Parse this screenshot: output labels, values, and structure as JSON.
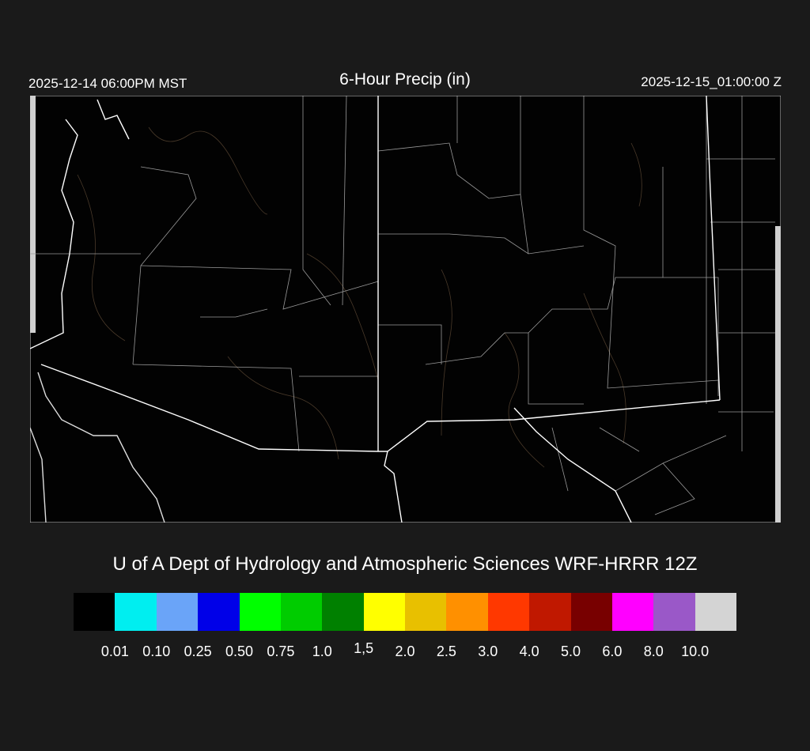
{
  "header": {
    "local_time": "2025-12-14 06:00PM MST",
    "title": "6-Hour Precip (in)",
    "valid_time": "2025-12-15_01:00:00 Z"
  },
  "map": {
    "region": "Arizona / New Mexico",
    "field": "6-hour precipitation",
    "background_color": "#020202",
    "border_color": "#ffffff",
    "terrain_contour_color": "#4a3a2a"
  },
  "credit": "U of A Dept of Hydrology and Atmospheric Sciences WRF-HRRR 12Z",
  "colorbar": {
    "colors": [
      "#000000",
      "#00eef0",
      "#6aa4f8",
      "#0000e8",
      "#00ff00",
      "#00cc00",
      "#008000",
      "#ffff00",
      "#e8c000",
      "#ff9000",
      "#ff3800",
      "#c01800",
      "#780000",
      "#ff00ff",
      "#9a58c8",
      "#d4d4d4"
    ],
    "labels": [
      "0.01",
      "0.10",
      "0.25",
      "0.50",
      "0.75",
      "1.0",
      "1,5",
      "2.0",
      "2.5",
      "3.0",
      "4.0",
      "5.0",
      "6.0",
      "8.0",
      "10.0"
    ]
  }
}
